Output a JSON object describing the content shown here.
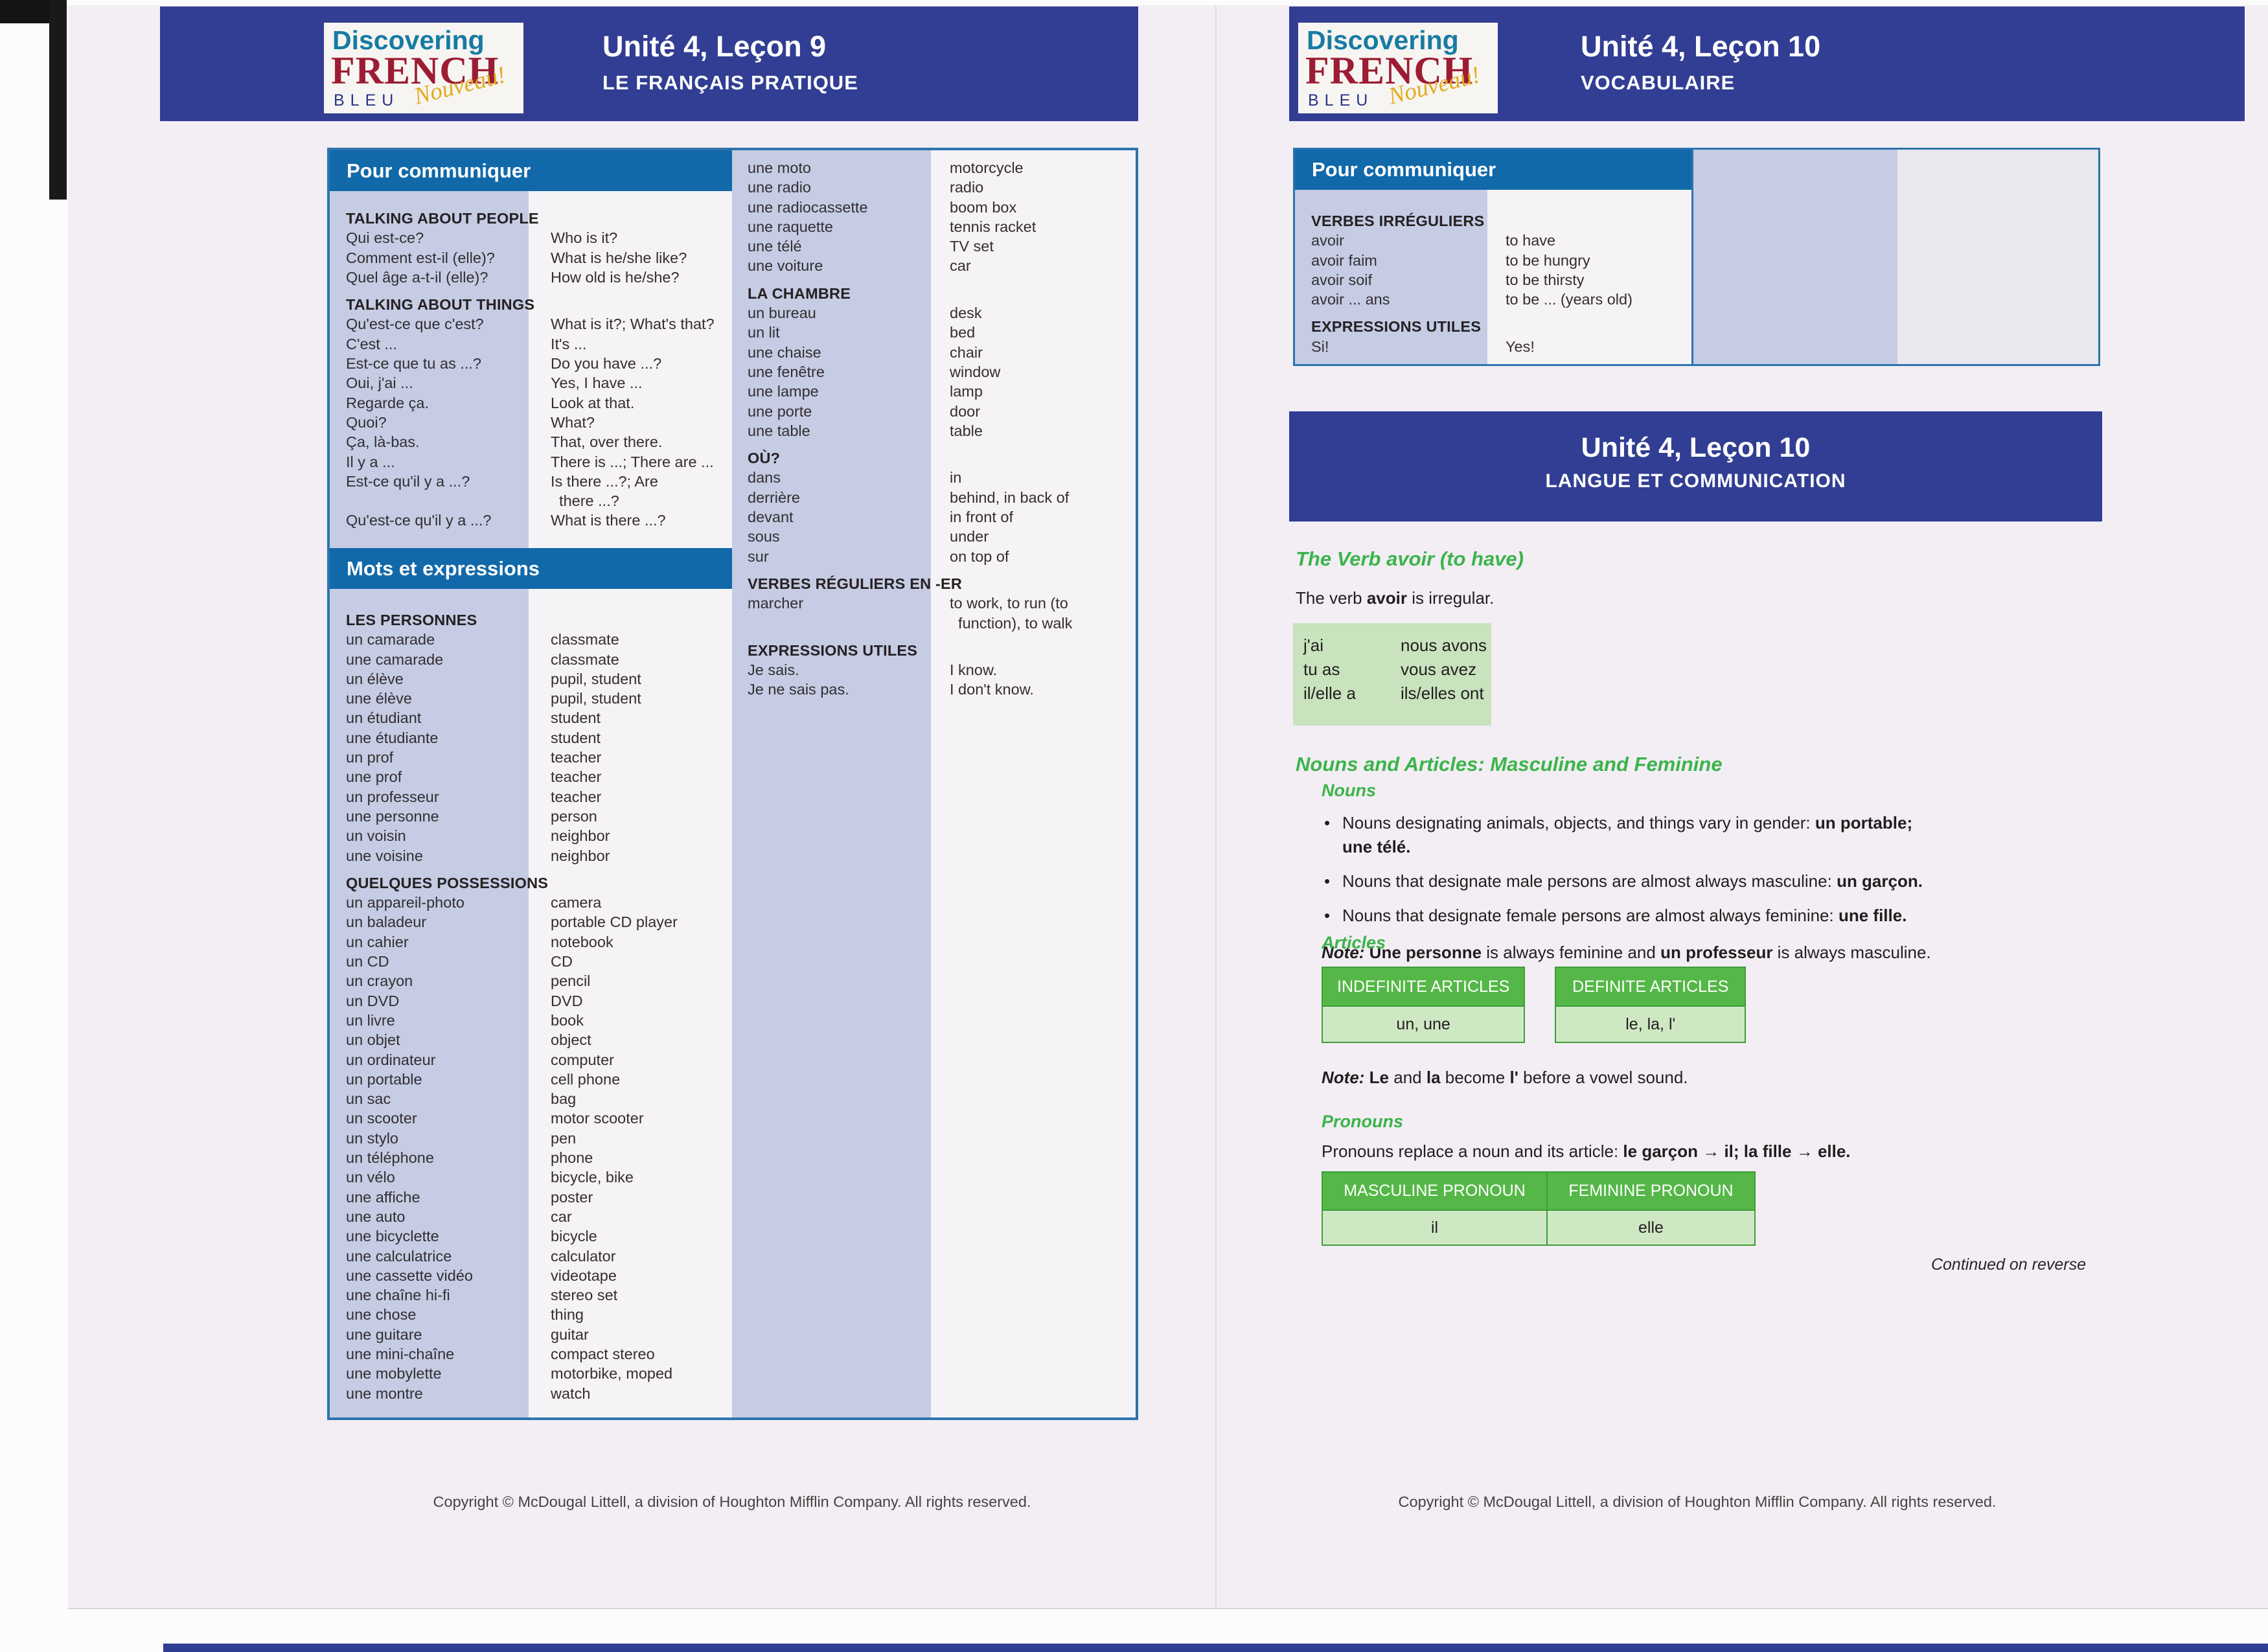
{
  "logo": {
    "line1": "Discovering",
    "line2": "FRENCH",
    "line3": "BLEU",
    "script": "Nouveau!"
  },
  "footer": "Copyright © McDougal Littell, a division of Houghton Mifflin Company. All rights reserved.",
  "left_page": {
    "header": {
      "title": "Unité 4, Leçon 9",
      "subtitle": "LE FRANÇAIS PRATIQUE"
    },
    "bar1": "Pour communiquer",
    "bar2": "Mots et expressions",
    "col1a": [
      {
        "h": "TALKING ABOUT PEOPLE"
      },
      {
        "f": "Qui est-ce?",
        "e": "Who is it?"
      },
      {
        "f": "Comment est-il (elle)?",
        "e": "What is he/she like?"
      },
      {
        "f": "Quel âge a-t-il (elle)?",
        "e": "How old is he/she?"
      },
      {
        "h": "TALKING ABOUT THINGS"
      },
      {
        "f": "Qu'est-ce que c'est?",
        "e": "What is it?; What's that?"
      },
      {
        "f": "C'est ...",
        "e": "It's ..."
      },
      {
        "f": "Est-ce que tu as ...?",
        "e": "Do you have ...?"
      },
      {
        "f": "Oui, j'ai ...",
        "e": "Yes, I have ..."
      },
      {
        "f": "Regarde ça.",
        "e": "Look at that."
      },
      {
        "f": "Quoi?",
        "e": "What?"
      },
      {
        "f": "Ça, là-bas.",
        "e": "That, over there."
      },
      {
        "f": "Il y a ...",
        "e": "There is ...; There are ..."
      },
      {
        "f": "Est-ce qu'il y a ...?",
        "e": "Is there ...?; Are\n  there ...?"
      },
      {
        "f": "Qu'est-ce qu'il y a ...?",
        "e": "What is there ...?"
      }
    ],
    "col1b": [
      {
        "h": "LES PERSONNES"
      },
      {
        "f": "un camarade",
        "e": "classmate"
      },
      {
        "f": "une camarade",
        "e": "classmate"
      },
      {
        "f": "un élève",
        "e": "pupil, student"
      },
      {
        "f": "une élève",
        "e": "pupil, student"
      },
      {
        "f": "un étudiant",
        "e": "student"
      },
      {
        "f": "une étudiante",
        "e": "student"
      },
      {
        "f": "un prof",
        "e": "teacher"
      },
      {
        "f": "une prof",
        "e": "teacher"
      },
      {
        "f": "un professeur",
        "e": "teacher"
      },
      {
        "f": "une personne",
        "e": "person"
      },
      {
        "f": "un voisin",
        "e": "neighbor"
      },
      {
        "f": "une voisine",
        "e": "neighbor"
      },
      {
        "h": "QUELQUES POSSESSIONS"
      },
      {
        "f": "un appareil-photo",
        "e": "camera"
      },
      {
        "f": "un baladeur",
        "e": "portable CD player"
      },
      {
        "f": "un cahier",
        "e": "notebook"
      },
      {
        "f": "un CD",
        "e": "CD"
      },
      {
        "f": "un crayon",
        "e": "pencil"
      },
      {
        "f": "un DVD",
        "e": "DVD"
      },
      {
        "f": "un livre",
        "e": "book"
      },
      {
        "f": "un objet",
        "e": "object"
      },
      {
        "f": "un ordinateur",
        "e": "computer"
      },
      {
        "f": "un portable",
        "e": "cell phone"
      },
      {
        "f": "un sac",
        "e": "bag"
      },
      {
        "f": "un scooter",
        "e": "motor scooter"
      },
      {
        "f": "un stylo",
        "e": "pen"
      },
      {
        "f": "un téléphone",
        "e": "phone"
      },
      {
        "f": "un vélo",
        "e": "bicycle, bike"
      },
      {
        "f": "une affiche",
        "e": "poster"
      },
      {
        "f": "une auto",
        "e": "car"
      },
      {
        "f": "une bicyclette",
        "e": "bicycle"
      },
      {
        "f": "une calculatrice",
        "e": "calculator"
      },
      {
        "f": "une cassette vidéo",
        "e": "videotape"
      },
      {
        "f": "une chaîne hi-fi",
        "e": "stereo set"
      },
      {
        "f": "une chose",
        "e": "thing"
      },
      {
        "f": "une guitare",
        "e": "guitar"
      },
      {
        "f": "une mini-chaîne",
        "e": "compact stereo"
      },
      {
        "f": "une mobylette",
        "e": "motorbike, moped"
      },
      {
        "f": "une montre",
        "e": "watch"
      }
    ],
    "col2": [
      {
        "f": "une moto",
        "e": "motorcycle"
      },
      {
        "f": "une radio",
        "e": "radio"
      },
      {
        "f": "une radiocassette",
        "e": "boom box"
      },
      {
        "f": "une raquette",
        "e": "tennis racket"
      },
      {
        "f": "une télé",
        "e": "TV set"
      },
      {
        "f": "une voiture",
        "e": "car"
      },
      {
        "h": "LA CHAMBRE"
      },
      {
        "f": "un bureau",
        "e": "desk"
      },
      {
        "f": "un lit",
        "e": "bed"
      },
      {
        "f": "une chaise",
        "e": "chair"
      },
      {
        "f": "une fenêtre",
        "e": "window"
      },
      {
        "f": "une lampe",
        "e": "lamp"
      },
      {
        "f": "une porte",
        "e": "door"
      },
      {
        "f": "une table",
        "e": "table"
      },
      {
        "h": "OÙ?"
      },
      {
        "f": "dans",
        "e": "in"
      },
      {
        "f": "derrière",
        "e": "behind, in back of"
      },
      {
        "f": "devant",
        "e": "in front of"
      },
      {
        "f": "sous",
        "e": "under"
      },
      {
        "f": "sur",
        "e": "on top of"
      },
      {
        "h": "VERBES RÉGULIERS EN -ER"
      },
      {
        "f": "marcher",
        "e": "to work, to run (to\n  function), to walk"
      },
      {
        "h": "EXPRESSIONS UTILES"
      },
      {
        "f": "Je sais.",
        "e": "I know."
      },
      {
        "f": "Je ne sais pas.",
        "e": "I don't know."
      }
    ]
  },
  "right_page": {
    "header": {
      "title": "Unité 4, Leçon 10",
      "subtitle": "VOCABULAIRE"
    },
    "bar1": "Pour communiquer",
    "pc_rows": [
      {
        "h": "VERBES IRRÉGULIERS"
      },
      {
        "f": "avoir",
        "e": "to have"
      },
      {
        "f": "avoir faim",
        "e": "to be hungry"
      },
      {
        "f": "avoir soif",
        "e": "to be thirsty"
      },
      {
        "f": "avoir ... ans",
        "e": "to be ... (years old)"
      },
      {
        "h": "EXPRESSIONS UTILES"
      },
      {
        "f": "Si!",
        "e": "Yes!"
      }
    ],
    "section_header": {
      "title": "Unité 4, Leçon 10",
      "subtitle": "LANGUE ET COMMUNICATION"
    },
    "verb_heading": "The Verb avoir (to have)",
    "verb_intro": [
      [
        "The verb ",
        ""
      ],
      [
        "avoir",
        "b"
      ],
      [
        " is irregular.",
        ""
      ]
    ],
    "avoir_left": [
      "j'ai",
      "tu as",
      "il/elle a"
    ],
    "avoir_right": [
      "nous avons",
      "vous avez",
      "ils/elles ont"
    ],
    "nouns_articles_heading": "Nouns and Articles: Masculine and Feminine",
    "nouns_subheading": "Nouns",
    "bullets": [
      [
        [
          "Nouns designating animals, objects, and things vary in gender: ",
          ""
        ],
        [
          "un portable;",
          "b"
        ],
        [
          "\n",
          ""
        ],
        [
          "une télé.",
          "b"
        ]
      ],
      [
        [
          "Nouns that designate male persons are almost always masculine: ",
          ""
        ],
        [
          "un garçon.",
          "b"
        ]
      ],
      [
        [
          "Nouns that designate female persons are almost always feminine: ",
          ""
        ],
        [
          "une fille.",
          "b"
        ]
      ]
    ],
    "note1": [
      [
        "Note: ",
        "bi"
      ],
      [
        "Une personne",
        "b"
      ],
      [
        " is always feminine and ",
        ""
      ],
      [
        "un professeur",
        "b"
      ],
      [
        " is always masculine.",
        ""
      ]
    ],
    "articles_subheading": "Articles",
    "indef_table": {
      "header": "INDEFINITE ARTICLES",
      "body": "un, une"
    },
    "def_table": {
      "header": "DEFINITE ARTICLES",
      "body": "le, la, l'"
    },
    "note2": [
      [
        "Note: ",
        "bi"
      ],
      [
        "Le",
        "b"
      ],
      [
        " and ",
        ""
      ],
      [
        "la",
        "b"
      ],
      [
        " become ",
        ""
      ],
      [
        "l'",
        "b"
      ],
      [
        " before a vowel sound.",
        ""
      ]
    ],
    "pronouns_subheading": "Pronouns",
    "pronouns_line": [
      [
        "Pronouns replace a noun and its article: ",
        ""
      ],
      [
        "le garçon",
        "b"
      ],
      [
        " → ",
        ""
      ],
      [
        "il; la fille",
        "b"
      ],
      [
        " → ",
        ""
      ],
      [
        "elle.",
        "b"
      ]
    ],
    "pronoun_table": {
      "h1": "MASCULINE PRONOUN",
      "h2": "FEMININE PRONOUN",
      "b1": "il",
      "b2": "elle"
    },
    "continued": "Continued on reverse"
  }
}
